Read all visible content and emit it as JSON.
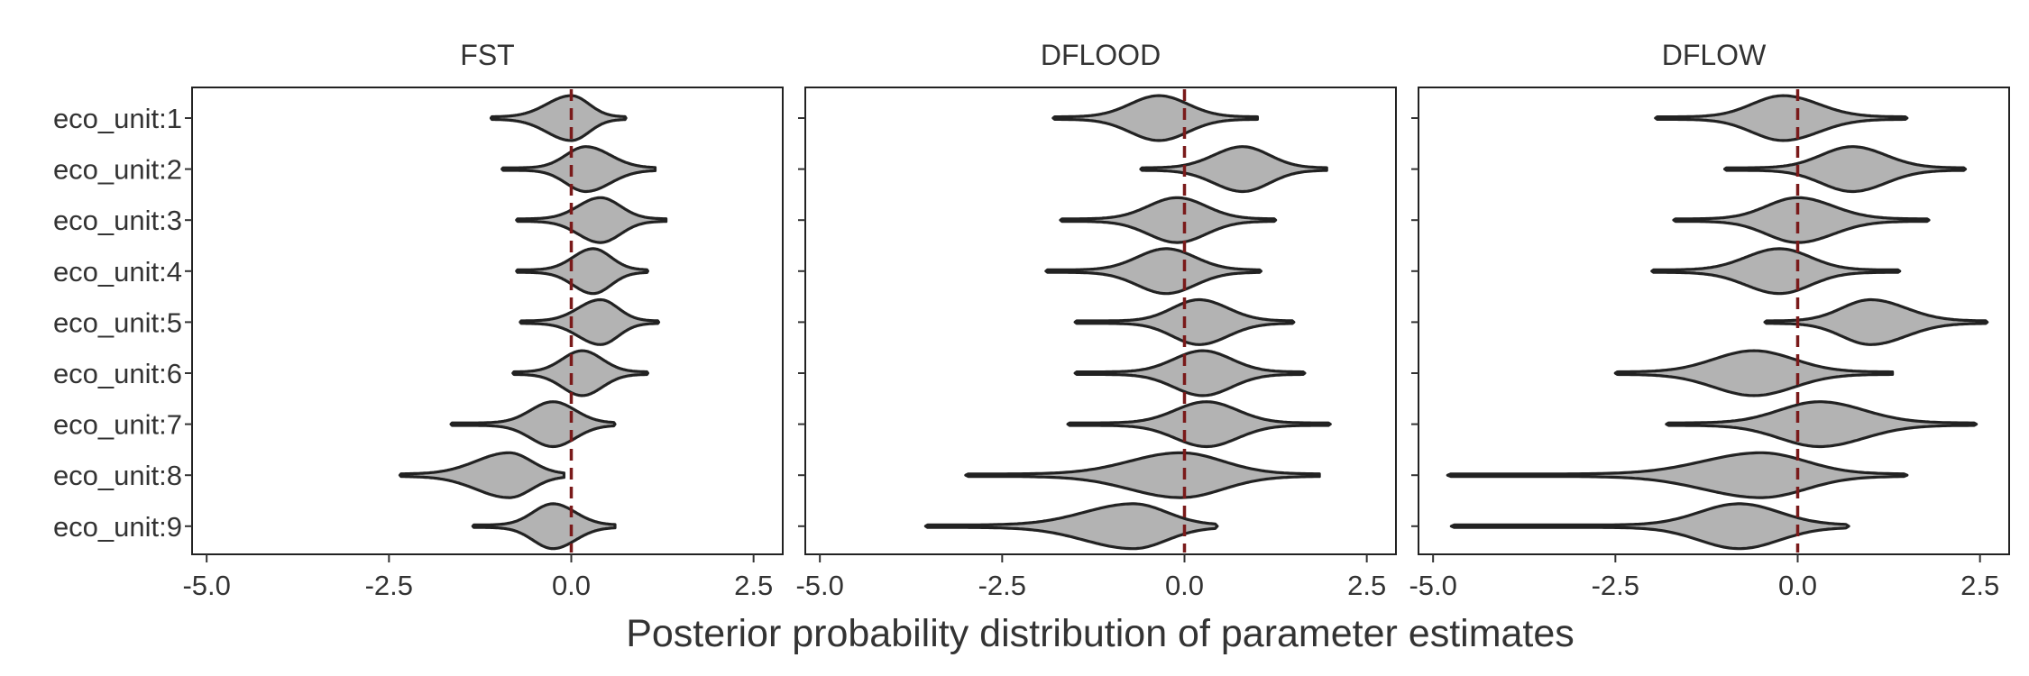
{
  "chart_data": {
    "type": "violin",
    "xlabel": "Posterior probability distribution of parameter estimates",
    "ylabel": "",
    "categories": [
      "eco_unit:1",
      "eco_unit:2",
      "eco_unit:3",
      "eco_unit:4",
      "eco_unit:5",
      "eco_unit:6",
      "eco_unit:7",
      "eco_unit:8",
      "eco_unit:9"
    ],
    "x_ticks": [
      -5.0,
      -2.5,
      0.0,
      2.5
    ],
    "x_tick_labels": [
      "-5.0",
      "-2.5",
      "0.0",
      "2.5"
    ],
    "xlim": [
      -5.2,
      2.9
    ],
    "reference_line": 0.0,
    "grid": false,
    "legend": "none",
    "colors": {
      "violin_fill": "#b3b3b3",
      "violin_outline": "#222222",
      "reference_line": "#7a1a1a"
    },
    "panels": [
      {
        "title": "FST",
        "violins": [
          {
            "category": "eco_unit:1",
            "min": -1.1,
            "q05": -0.55,
            "center": 0.0,
            "q95": 0.4,
            "max": 0.75
          },
          {
            "category": "eco_unit:2",
            "min": -0.95,
            "q05": -0.25,
            "center": 0.2,
            "q95": 0.75,
            "max": 1.15
          },
          {
            "category": "eco_unit:3",
            "min": -0.75,
            "q05": -0.1,
            "center": 0.4,
            "q95": 0.85,
            "max": 1.3
          },
          {
            "category": "eco_unit:4",
            "min": -0.75,
            "q05": -0.15,
            "center": 0.3,
            "q95": 0.7,
            "max": 1.05
          },
          {
            "category": "eco_unit:5",
            "min": -0.7,
            "q05": -0.1,
            "center": 0.4,
            "q95": 0.8,
            "max": 1.2
          },
          {
            "category": "eco_unit:6",
            "min": -0.8,
            "q05": -0.3,
            "center": 0.15,
            "q95": 0.6,
            "max": 1.05
          },
          {
            "category": "eco_unit:7",
            "min": -1.65,
            "q05": -0.75,
            "center": -0.25,
            "q95": 0.25,
            "max": 0.6
          },
          {
            "category": "eco_unit:8",
            "min": -2.35,
            "q05": -1.6,
            "center": -0.85,
            "q95": -0.35,
            "max": -0.1
          },
          {
            "category": "eco_unit:9",
            "min": -1.35,
            "q05": -0.7,
            "center": -0.25,
            "q95": 0.25,
            "max": 0.6
          }
        ]
      },
      {
        "title": "DFLOOD",
        "violins": [
          {
            "category": "eco_unit:1",
            "min": -1.8,
            "q05": -1.0,
            "center": -0.35,
            "q95": 0.3,
            "max": 1.0
          },
          {
            "category": "eco_unit:2",
            "min": -0.6,
            "q05": 0.15,
            "center": 0.8,
            "q95": 1.4,
            "max": 1.95
          },
          {
            "category": "eco_unit:3",
            "min": -1.7,
            "q05": -0.75,
            "center": -0.1,
            "q95": 0.55,
            "max": 1.25
          },
          {
            "category": "eco_unit:4",
            "min": -1.9,
            "q05": -0.9,
            "center": -0.25,
            "q95": 0.4,
            "max": 1.05
          },
          {
            "category": "eco_unit:5",
            "min": -1.5,
            "q05": -0.4,
            "center": 0.2,
            "q95": 0.85,
            "max": 1.5
          },
          {
            "category": "eco_unit:6",
            "min": -1.5,
            "q05": -0.4,
            "center": 0.25,
            "q95": 0.9,
            "max": 1.65
          },
          {
            "category": "eco_unit:7",
            "min": -1.6,
            "q05": -0.4,
            "center": 0.3,
            "q95": 1.0,
            "max": 2.0
          },
          {
            "category": "eco_unit:8",
            "min": -3.0,
            "q05": -1.2,
            "center": -0.05,
            "q95": 0.9,
            "max": 1.85
          },
          {
            "category": "eco_unit:9",
            "min": -3.55,
            "q05": -1.8,
            "center": -0.7,
            "q95": 0.05,
            "max": 0.45
          }
        ]
      },
      {
        "title": "DFLOW",
        "violins": [
          {
            "category": "eco_unit:1",
            "min": -1.95,
            "q05": -0.9,
            "center": -0.2,
            "q95": 0.6,
            "max": 1.5
          },
          {
            "category": "eco_unit:2",
            "min": -1.0,
            "q05": 0.05,
            "center": 0.75,
            "q95": 1.5,
            "max": 2.3
          },
          {
            "category": "eco_unit:3",
            "min": -1.7,
            "q05": -0.7,
            "center": 0.0,
            "q95": 0.8,
            "max": 1.8
          },
          {
            "category": "eco_unit:4",
            "min": -2.0,
            "q05": -1.0,
            "center": -0.25,
            "q95": 0.45,
            "max": 1.4
          },
          {
            "category": "eco_unit:5",
            "min": -0.45,
            "q05": 0.35,
            "center": 1.0,
            "q95": 1.8,
            "max": 2.6
          },
          {
            "category": "eco_unit:6",
            "min": -2.5,
            "q05": -1.5,
            "center": -0.6,
            "q95": 0.3,
            "max": 1.3
          },
          {
            "category": "eco_unit:7",
            "min": -1.8,
            "q05": -0.6,
            "center": 0.3,
            "q95": 1.3,
            "max": 2.45
          },
          {
            "category": "eco_unit:8",
            "min": -4.8,
            "q05": -1.8,
            "center": -0.5,
            "q95": 0.5,
            "max": 1.5
          },
          {
            "category": "eco_unit:9",
            "min": -4.75,
            "q05": -1.7,
            "center": -0.8,
            "q95": 0.1,
            "max": 0.7
          }
        ]
      }
    ]
  }
}
